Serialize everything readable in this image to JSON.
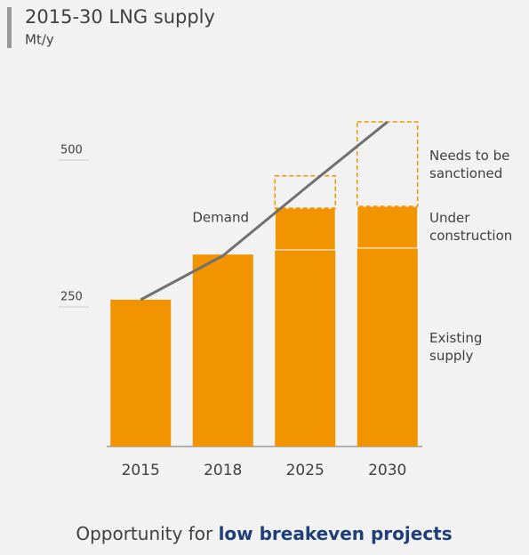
{
  "chart_data": {
    "type": "stacked_bar",
    "title": "2015-30 LNG supply",
    "subtitle": "Mt/y",
    "categories": [
      "2015",
      "2018",
      "2025",
      "2030"
    ],
    "series": [
      {
        "name": "Existing supply",
        "color": "#f29400",
        "values": [
          250,
          327,
          335,
          338
        ]
      },
      {
        "name": "Under construction",
        "color": "#f29400",
        "values": [
          null,
          null,
          71,
          71
        ]
      },
      {
        "name": "Needs to be sanctioned",
        "color": "#f29400",
        "style": "dashed",
        "values": [
          null,
          null,
          55,
          144
        ]
      },
      {
        "name": "Demand",
        "type": "line",
        "color": "#707070",
        "values": [
          250,
          325,
          440,
          553
        ]
      }
    ],
    "ylim": [
      0,
      560
    ],
    "yticks": [
      250,
      500
    ],
    "footer": "Opportunity for ",
    "footer_highlight": "low breakeven projects"
  }
}
